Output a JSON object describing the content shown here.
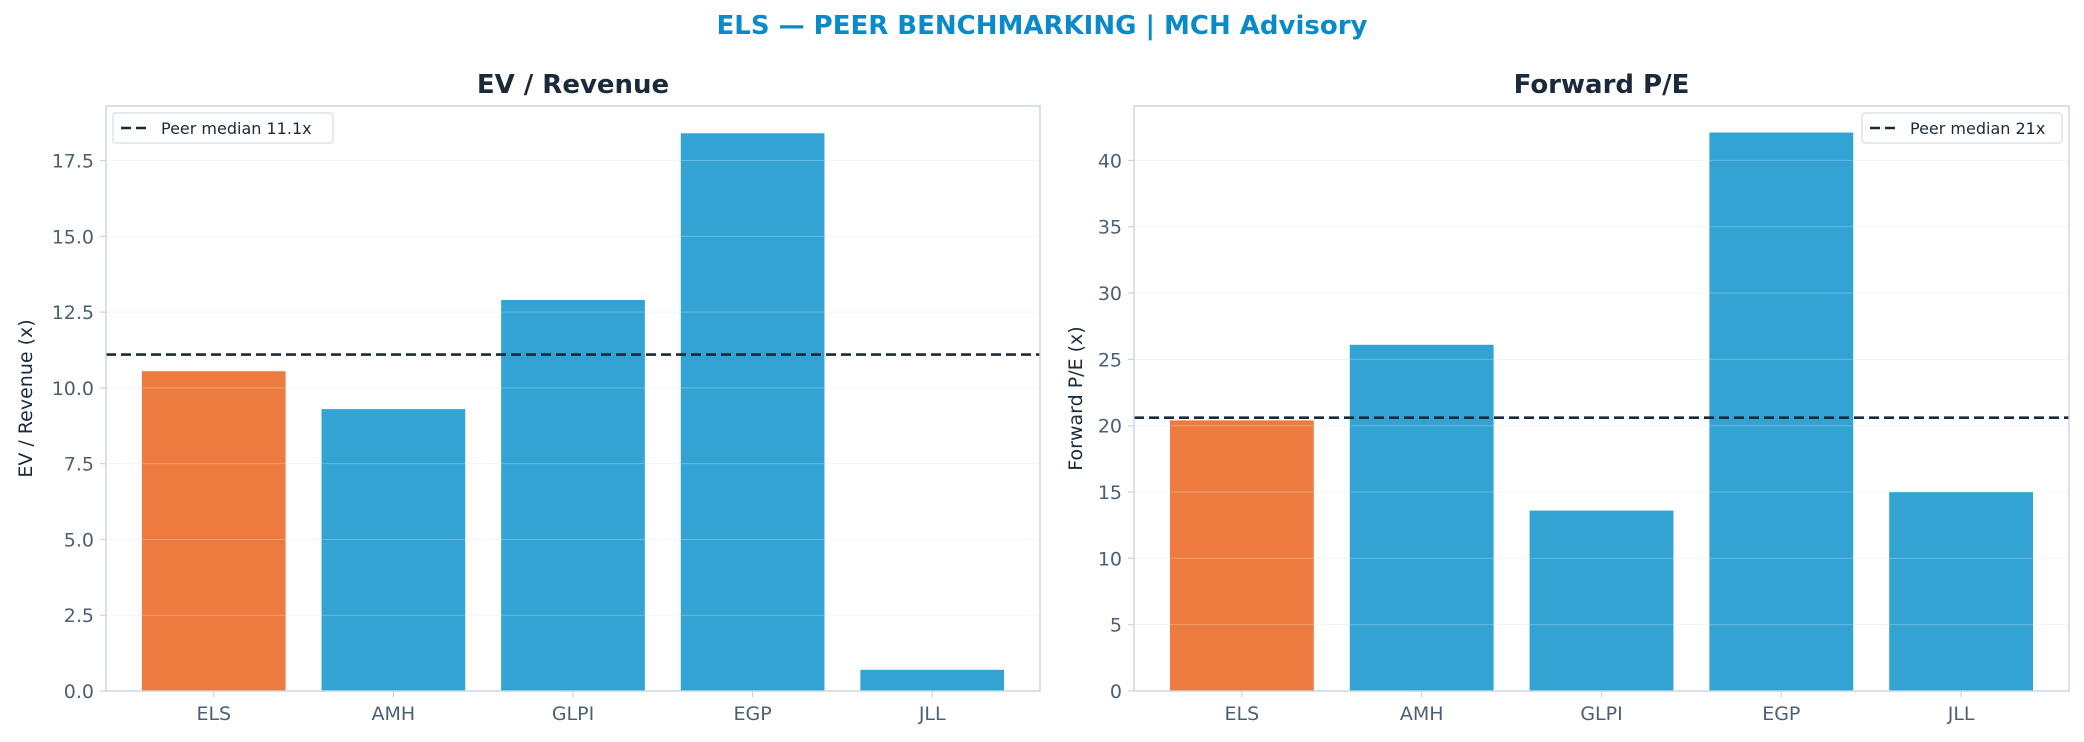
{
  "figure": {
    "title": "ELS — PEER BENCHMARKING | MCH Advisory",
    "title_color": "#0a8bc9"
  },
  "colors": {
    "subject": "#ed7b3f",
    "peer": "#33a3d4",
    "median_line": "#1b2a3a",
    "axis": "#c9d6e0",
    "grid": "#eef3f6"
  },
  "chart_data": [
    {
      "type": "bar",
      "title": "EV / Revenue",
      "ylabel": "EV / Revenue (x)",
      "categories": [
        "ELS",
        "AMH",
        "GLPI",
        "EGP",
        "JLL"
      ],
      "values": [
        10.55,
        9.3,
        12.9,
        18.4,
        0.7
      ],
      "highlight": "ELS",
      "ylim": [
        0,
        19.3
      ],
      "yticks": [
        0,
        2.5,
        5,
        7.5,
        10,
        12.5,
        15,
        17.5
      ],
      "ytick_labels": [
        "0.0",
        "2.5",
        "5.0",
        "7.5",
        "10.0",
        "12.5",
        "15.0",
        "17.5"
      ],
      "median": 11.1,
      "legend": "Peer median 11.1x",
      "legend_position": "top-left",
      "grid": true
    },
    {
      "type": "bar",
      "title": "Forward P/E",
      "ylabel": "Forward P/E (x)",
      "categories": [
        "ELS",
        "AMH",
        "GLPI",
        "EGP",
        "JLL"
      ],
      "values": [
        20.4,
        26.1,
        13.6,
        42.1,
        15.0
      ],
      "highlight": "ELS",
      "ylim": [
        0,
        44.1
      ],
      "yticks": [
        0,
        5,
        10,
        15,
        20,
        25,
        30,
        35,
        40
      ],
      "ytick_labels": [
        "0",
        "5",
        "10",
        "15",
        "20",
        "25",
        "30",
        "35",
        "40"
      ],
      "median": 20.6,
      "legend": "Peer median 21x",
      "legend_position": "top-right",
      "grid": true
    }
  ]
}
